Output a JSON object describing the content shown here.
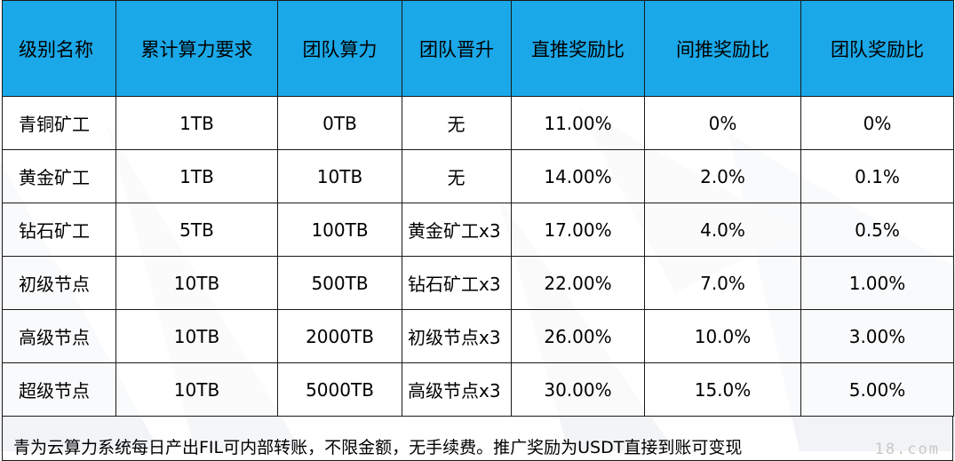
{
  "table": {
    "headers": [
      "级别名称",
      "累计算力要求",
      "团队算力",
      "团队晋升",
      "直推奖励比",
      "间推奖励比",
      "团队奖励比"
    ],
    "rows": [
      [
        "青铜矿工",
        "1TB",
        "0TB",
        "无",
        "11.00%",
        "0%",
        "0%"
      ],
      [
        "黄金矿工",
        "1TB",
        "10TB",
        "无",
        "14.00%",
        "2.0%",
        "0.1%"
      ],
      [
        "钻石矿工",
        "5TB",
        "100TB",
        "黄金矿工x3",
        "17.00%",
        "4.0%",
        "0.5%"
      ],
      [
        "初级节点",
        "10TB",
        "500TB",
        "钻石矿工x3",
        "22.00%",
        "7.0%",
        "1.00%"
      ],
      [
        "高级节点",
        "10TB",
        "2000TB",
        "初级节点x3",
        "26.00%",
        "10.0%",
        "3.00%"
      ],
      [
        "超级节点",
        "10TB",
        "5000TB",
        "高级节点x3",
        "30.00%",
        "15.0%",
        "5.00%"
      ]
    ]
  },
  "note": "青为云算力系统每日产出FIL可内部转账，不限金额，无手续费。推广奖励为USDT直接到账可变现",
  "watermark": "18.com",
  "colors": {
    "header_bg": "#1aa8e8",
    "border": "#1a1a1a"
  }
}
